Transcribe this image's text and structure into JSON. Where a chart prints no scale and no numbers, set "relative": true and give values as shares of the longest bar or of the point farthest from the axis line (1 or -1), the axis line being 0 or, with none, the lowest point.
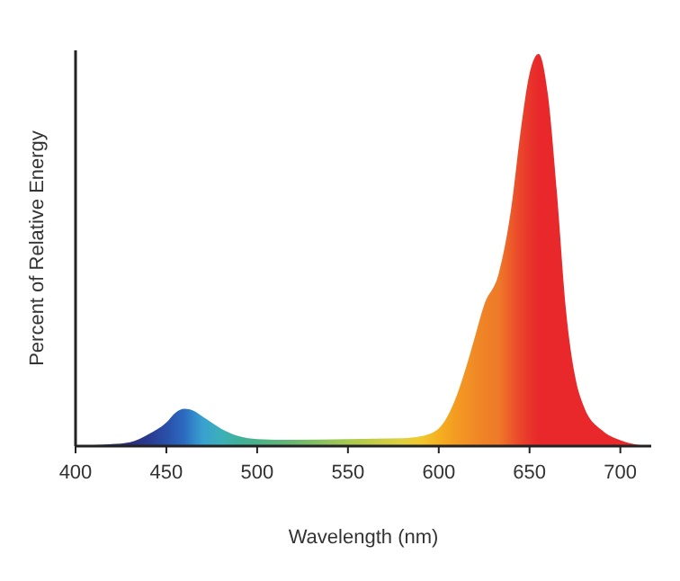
{
  "chart_data": {
    "type": "area",
    "relative": true,
    "xlabel": "Wavelength (nm)",
    "ylabel": "Percent of Relative Energy",
    "xlim": [
      400,
      717
    ],
    "xticks": [
      400,
      450,
      500,
      550,
      600,
      650,
      700
    ],
    "grid": false,
    "series": [
      {
        "x": [
          400,
          420,
          430,
          440,
          450,
          455,
          460,
          465,
          470,
          480,
          490,
          500,
          520,
          550,
          580,
          590,
          600,
          610,
          615,
          620,
          625,
          633,
          640,
          645,
          650,
          655,
          660,
          665,
          670,
          675,
          680,
          690,
          700,
          710,
          717
        ],
        "values": [
          0,
          0.005,
          0.01,
          0.03,
          0.06,
          0.085,
          0.095,
          0.09,
          0.075,
          0.045,
          0.025,
          0.018,
          0.016,
          0.018,
          0.02,
          0.025,
          0.045,
          0.13,
          0.2,
          0.28,
          0.36,
          0.44,
          0.61,
          0.8,
          0.95,
          1,
          0.9,
          0.65,
          0.35,
          0.18,
          0.1,
          0.04,
          0.015,
          0.003,
          0
        ],
        "colors": [
          "#2a2f7a",
          "#2a2f7a",
          "#2a2f7a",
          "#2a3a90",
          "#2a4fa8",
          "#2b5db4",
          "#2b6cc0",
          "#3288c8",
          "#3aa0d0",
          "#3cb0b8",
          "#40b09a",
          "#4cb08a",
          "#6ab870",
          "#a8c850",
          "#e0d040",
          "#f0c830",
          "#f5b020",
          "#f39a22",
          "#f29224",
          "#f08a25",
          "#ef8226",
          "#ee7a28",
          "#ec5a2a",
          "#ea452b",
          "#e8352b",
          "#e8282b",
          "#e8282b",
          "#e8282b",
          "#e8282b",
          "#e8282b",
          "#e8282b",
          "#e8282b",
          "#e8282b",
          "#e8282b",
          "#e8282b"
        ]
      }
    ]
  }
}
